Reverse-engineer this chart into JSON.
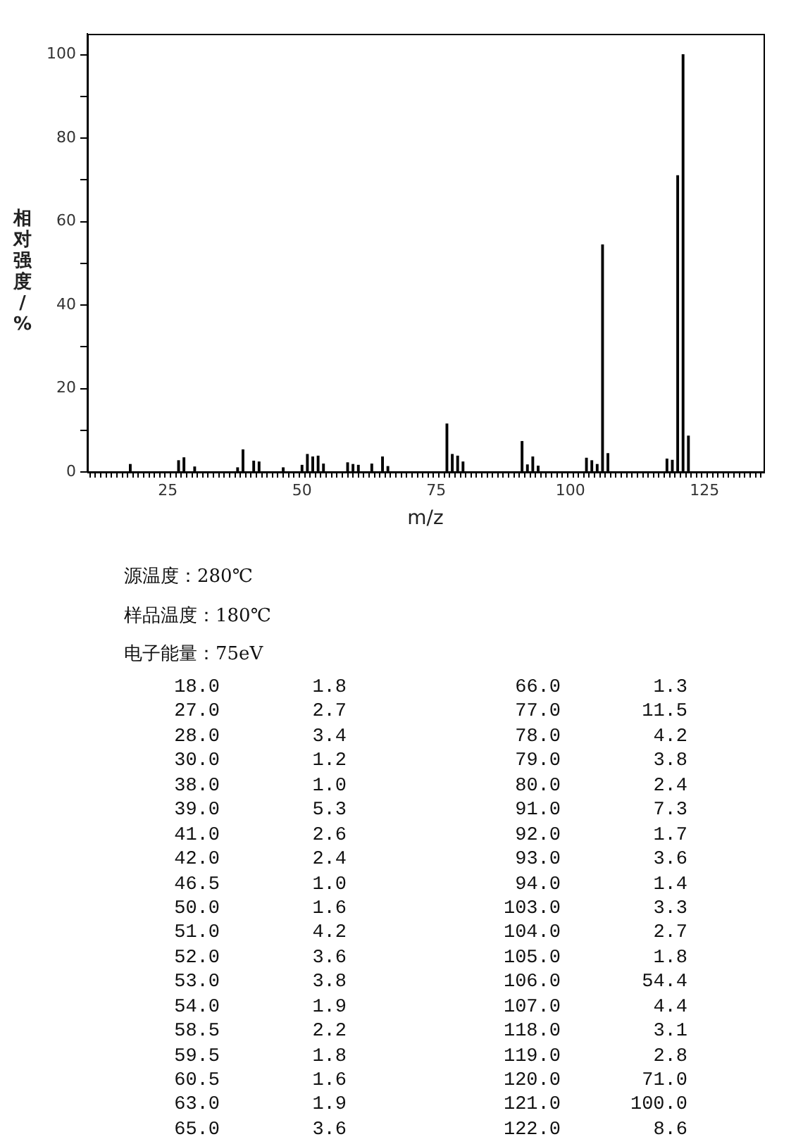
{
  "chart_data": {
    "type": "bar",
    "xlabel": "m/z",
    "ylabel": "相对强度/%",
    "color": "#000000",
    "x": [
      18.0,
      27.0,
      28.0,
      30.0,
      38.0,
      39.0,
      41.0,
      42.0,
      46.5,
      50.0,
      51.0,
      52.0,
      53.0,
      54.0,
      58.5,
      59.5,
      60.5,
      63.0,
      65.0,
      66.0,
      77.0,
      78.0,
      79.0,
      80.0,
      91.0,
      92.0,
      93.0,
      94.0,
      103.0,
      104.0,
      105.0,
      106.0,
      107.0,
      118.0,
      119.0,
      120.0,
      121.0,
      122.0
    ],
    "values": [
      1.8,
      2.7,
      3.4,
      1.2,
      1.0,
      5.3,
      2.6,
      2.4,
      1.0,
      1.6,
      4.2,
      3.6,
      3.8,
      1.9,
      2.2,
      1.8,
      1.6,
      1.9,
      3.6,
      1.3,
      11.5,
      4.2,
      3.8,
      2.4,
      7.3,
      1.7,
      3.6,
      1.4,
      3.3,
      2.7,
      1.8,
      54.4,
      4.4,
      3.1,
      2.8,
      71.0,
      100.0,
      8.6
    ],
    "xlim": [
      10,
      136
    ],
    "xticks": [
      {
        "value": 11,
        "label": null
      },
      {
        "value": 12,
        "label": null
      },
      {
        "value": 13,
        "label": null
      },
      {
        "value": 14,
        "label": null
      },
      {
        "value": 15,
        "label": null
      },
      {
        "value": 16,
        "label": null
      },
      {
        "value": 17,
        "label": null
      },
      {
        "value": 18,
        "label": null
      },
      {
        "value": 19,
        "label": null
      },
      {
        "value": 20,
        "label": null
      },
      {
        "value": 21,
        "label": null
      },
      {
        "value": 22,
        "label": null
      },
      {
        "value": 23,
        "label": null
      },
      {
        "value": 24,
        "label": null
      },
      25,
      {
        "value": 26,
        "label": null
      },
      {
        "value": 27,
        "label": null
      },
      {
        "value": 28,
        "label": null
      },
      {
        "value": 29,
        "label": null
      },
      {
        "value": 30,
        "label": null
      },
      {
        "value": 31,
        "label": null
      },
      {
        "value": 32,
        "label": null
      },
      {
        "value": 33,
        "label": null
      },
      {
        "value": 34,
        "label": null
      },
      {
        "value": 35,
        "label": null
      },
      {
        "value": 36,
        "label": null
      },
      {
        "value": 37,
        "label": null
      },
      {
        "value": 38,
        "label": null
      },
      {
        "value": 39,
        "label": null
      },
      {
        "value": 40,
        "label": null
      },
      {
        "value": 41,
        "label": null
      },
      {
        "value": 42,
        "label": null
      },
      {
        "value": 43,
        "label": null
      },
      {
        "value": 44,
        "label": null
      },
      {
        "value": 45,
        "label": null
      },
      {
        "value": 46,
        "label": null
      },
      {
        "value": 47,
        "label": null
      },
      {
        "value": 48,
        "label": null
      },
      {
        "value": 49,
        "label": null
      },
      50,
      {
        "value": 51,
        "label": null
      },
      {
        "value": 52,
        "label": null
      },
      {
        "value": 53,
        "label": null
      },
      {
        "value": 54,
        "label": null
      },
      {
        "value": 55,
        "label": null
      },
      {
        "value": 56,
        "label": null
      },
      {
        "value": 57,
        "label": null
      },
      {
        "value": 58,
        "label": null
      },
      {
        "value": 59,
        "label": null
      },
      {
        "value": 60,
        "label": null
      },
      {
        "value": 61,
        "label": null
      },
      {
        "value": 62,
        "label": null
      },
      {
        "value": 63,
        "label": null
      },
      {
        "value": 64,
        "label": null
      },
      {
        "value": 65,
        "label": null
      },
      {
        "value": 66,
        "label": null
      },
      {
        "value": 67,
        "label": null
      },
      {
        "value": 68,
        "label": null
      },
      {
        "value": 69,
        "label": null
      },
      {
        "value": 70,
        "label": null
      },
      {
        "value": 71,
        "label": null
      },
      {
        "value": 72,
        "label": null
      },
      {
        "value": 73,
        "label": null
      },
      {
        "value": 74,
        "label": null
      },
      75,
      {
        "value": 76,
        "label": null
      },
      {
        "value": 77,
        "label": null
      },
      {
        "value": 78,
        "label": null
      },
      {
        "value": 79,
        "label": null
      },
      {
        "value": 80,
        "label": null
      },
      {
        "value": 81,
        "label": null
      },
      {
        "value": 82,
        "label": null
      },
      {
        "value": 83,
        "label": null
      },
      {
        "value": 84,
        "label": null
      },
      {
        "value": 85,
        "label": null
      },
      {
        "value": 86,
        "label": null
      },
      {
        "value": 87,
        "label": null
      },
      {
        "value": 88,
        "label": null
      },
      {
        "value": 89,
        "label": null
      },
      {
        "value": 90,
        "label": null
      },
      {
        "value": 91,
        "label": null
      },
      {
        "value": 92,
        "label": null
      },
      {
        "value": 93,
        "label": null
      },
      {
        "value": 94,
        "label": null
      },
      {
        "value": 95,
        "label": null
      },
      {
        "value": 96,
        "label": null
      },
      {
        "value": 97,
        "label": null
      },
      {
        "value": 98,
        "label": null
      },
      {
        "value": 99,
        "label": null
      },
      100,
      {
        "value": 101,
        "label": null
      },
      {
        "value": 102,
        "label": null
      },
      {
        "value": 103,
        "label": null
      },
      {
        "value": 104,
        "label": null
      },
      {
        "value": 105,
        "label": null
      },
      {
        "value": 106,
        "label": null
      },
      {
        "value": 107,
        "label": null
      },
      {
        "value": 108,
        "label": null
      },
      {
        "value": 109,
        "label": null
      },
      {
        "value": 110,
        "label": null
      },
      {
        "value": 111,
        "label": null
      },
      {
        "value": 112,
        "label": null
      },
      {
        "value": 113,
        "label": null
      },
      {
        "value": 114,
        "label": null
      },
      {
        "value": 115,
        "label": null
      },
      {
        "value": 116,
        "label": null
      },
      {
        "value": 117,
        "label": null
      },
      {
        "value": 118,
        "label": null
      },
      {
        "value": 119,
        "label": null
      },
      {
        "value": 120,
        "label": null
      },
      {
        "value": 121,
        "label": null
      },
      {
        "value": 122,
        "label": null
      },
      {
        "value": 123,
        "label": null
      },
      {
        "value": 124,
        "label": null
      },
      125,
      {
        "value": 126,
        "label": null
      },
      {
        "value": 127,
        "label": null
      },
      {
        "value": 128,
        "label": null
      },
      {
        "value": 129,
        "label": null
      },
      {
        "value": 130,
        "label": null
      },
      {
        "value": 131,
        "label": null
      },
      {
        "value": 132,
        "label": null
      },
      {
        "value": 133,
        "label": null
      },
      {
        "value": 134,
        "label": null
      },
      {
        "value": 135,
        "label": null
      }
    ],
    "ylim": [
      0,
      105
    ],
    "yticks": [
      0,
      {
        "value": 10,
        "label": null
      },
      20,
      {
        "value": 30,
        "label": null
      },
      40,
      {
        "value": 50,
        "label": null
      },
      60,
      {
        "value": 70,
        "label": null
      },
      80,
      {
        "value": 90,
        "label": null
      },
      100
    ],
    "grid": false,
    "legend": false,
    "annotations": [
      "源温度：280℃",
      "样品温度：180℃",
      "电子能量：75eV",
      "18.0",
      "1.8",
      "66.0",
      "1.3",
      "27.0",
      "2.7",
      "77.0",
      "11.5",
      "28.0",
      "3.4",
      "78.0",
      "4.2",
      "30.0",
      "1.2",
      "79.0",
      "3.8",
      "38.0",
      "1.0",
      "80.0",
      "2.4",
      "39.0",
      "5.3",
      "91.0",
      "7.3",
      "41.0",
      "2.6",
      "92.0",
      "1.7",
      "42.0",
      "2.4",
      "93.0",
      "3.6",
      "46.5",
      "1.0",
      "94.0",
      "1.4",
      "50.0",
      "1.6",
      "103.0",
      "3.3",
      "51.0",
      "4.2",
      "104.0",
      "2.7",
      "52.0",
      "3.6",
      "105.0",
      "1.8",
      "53.0",
      "3.8",
      "106.0",
      "54.4",
      "54.0",
      "1.9",
      "107.0",
      "4.4",
      "58.5",
      "2.2",
      "118.0",
      "3.1",
      "59.5",
      "1.8",
      "119.0",
      "2.8",
      "60.5",
      "1.6",
      "120.0",
      "71.0",
      "63.0",
      "1.9",
      "121.0",
      "100.0",
      "65.0",
      "3.6",
      "122.0",
      "8.6"
    ]
  }
}
